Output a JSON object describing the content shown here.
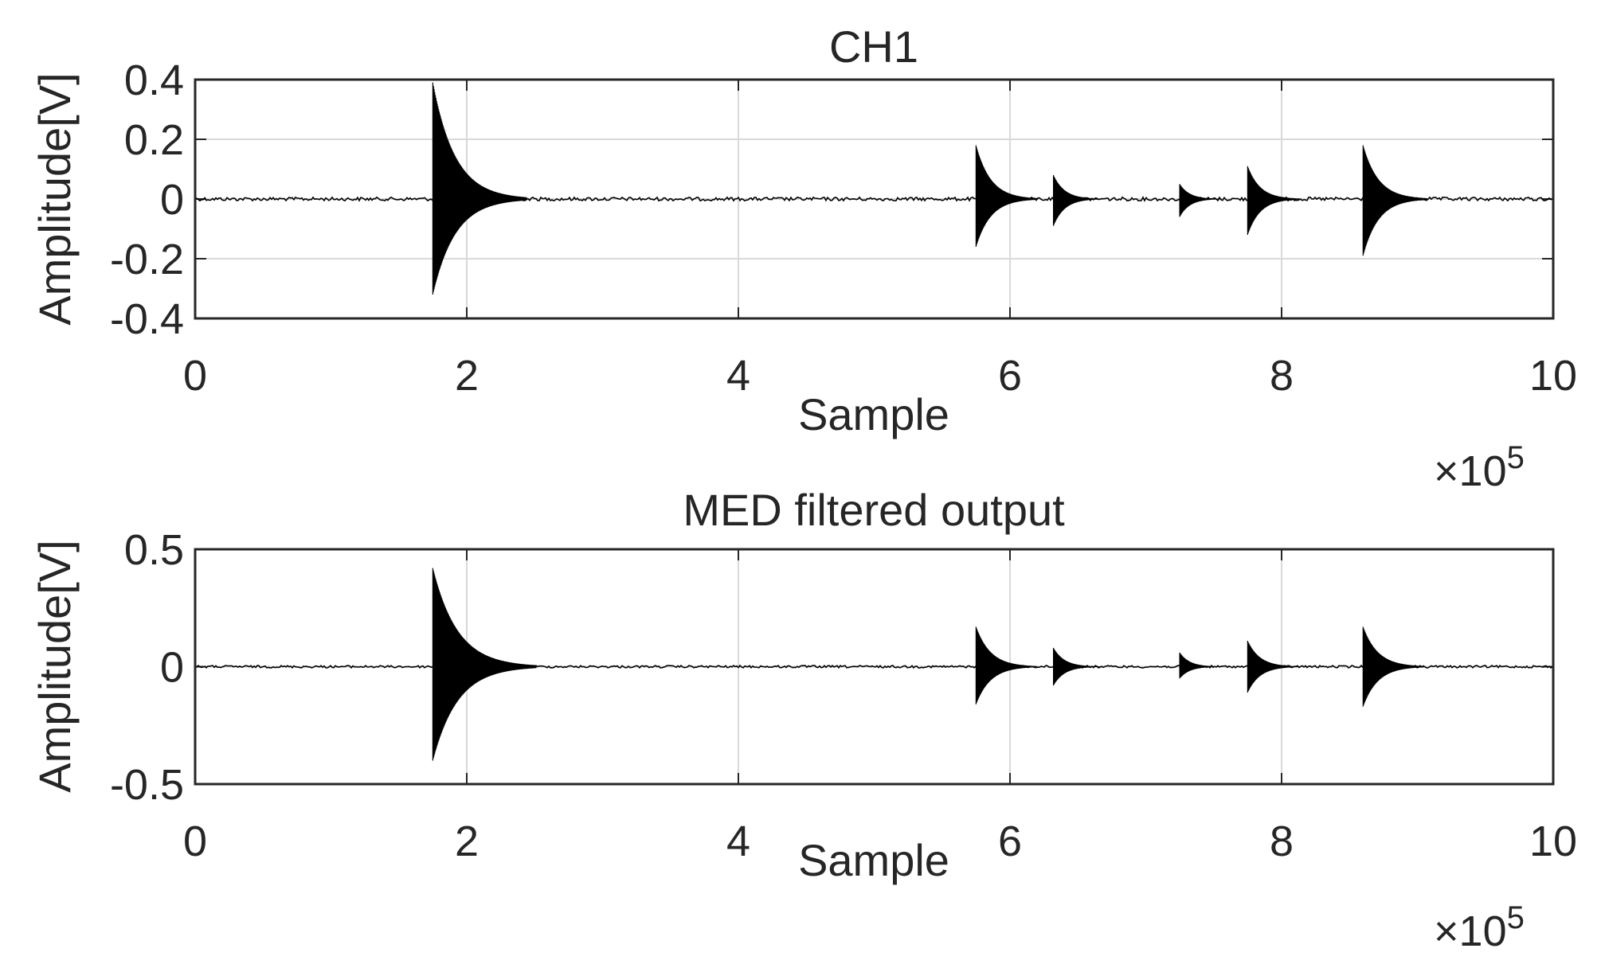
{
  "chart_data": [
    {
      "type": "line",
      "title": "CH1",
      "xlabel": "Sample",
      "ylabel": "Amplitude[V]",
      "x_multiplier": "×10",
      "x_multiplier_exp": "5",
      "xlim": [
        0,
        10
      ],
      "ylim": [
        -0.4,
        0.4
      ],
      "xticks": [
        0,
        2,
        4,
        6,
        8,
        10
      ],
      "xtick_labels": [
        "0",
        "2",
        "4",
        "6",
        "8",
        "10"
      ],
      "yticks": [
        0.4,
        0.2,
        0,
        -0.2,
        -0.4
      ],
      "ytick_labels": [
        "0.4",
        "0.2",
        "0",
        "-0.2",
        "-0.4"
      ],
      "grid": true,
      "noise_floor": 0.006,
      "bursts": [
        {
          "x": 1.75,
          "peak": 0.39,
          "trough": -0.32
        },
        {
          "x": 5.75,
          "peak": 0.18,
          "trough": -0.16
        },
        {
          "x": 6.32,
          "peak": 0.08,
          "trough": -0.09
        },
        {
          "x": 7.25,
          "peak": 0.05,
          "trough": -0.06
        },
        {
          "x": 7.75,
          "peak": 0.11,
          "trough": -0.12
        },
        {
          "x": 8.6,
          "peak": 0.18,
          "trough": -0.19
        }
      ]
    },
    {
      "type": "line",
      "title": "MED filtered output",
      "xlabel": "Sample",
      "ylabel": "Amplitude[V]",
      "x_multiplier": "×10",
      "x_multiplier_exp": "5",
      "xlim": [
        0,
        10
      ],
      "ylim": [
        -0.5,
        0.5
      ],
      "xticks": [
        0,
        2,
        4,
        6,
        8,
        10
      ],
      "xtick_labels": [
        "0",
        "2",
        "4",
        "6",
        "8",
        "10"
      ],
      "yticks": [
        0.5,
        0,
        -0.5
      ],
      "ytick_labels": [
        "0.5",
        "0",
        "-0.5"
      ],
      "grid": true,
      "noise_floor": 0.005,
      "bursts": [
        {
          "x": 1.75,
          "peak": 0.42,
          "trough": -0.4
        },
        {
          "x": 5.75,
          "peak": 0.17,
          "trough": -0.16
        },
        {
          "x": 6.32,
          "peak": 0.08,
          "trough": -0.08
        },
        {
          "x": 7.25,
          "peak": 0.06,
          "trough": -0.05
        },
        {
          "x": 7.75,
          "peak": 0.11,
          "trough": -0.11
        },
        {
          "x": 8.6,
          "peak": 0.17,
          "trough": -0.17
        }
      ]
    }
  ]
}
